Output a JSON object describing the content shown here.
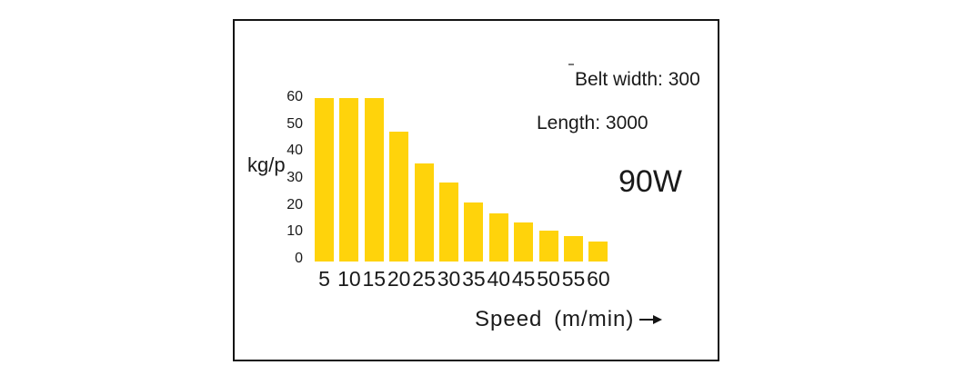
{
  "panel": {
    "background": "#ffffff",
    "border_color": "#141414",
    "text_color": "#1a1a1a"
  },
  "annotations": {
    "belt_width": "Belt width: 300",
    "length": "Length: 3000",
    "power": "90W"
  },
  "icons": {
    "x_axis_arrow": "right-arrow"
  },
  "chart_data": {
    "type": "bar",
    "title": "",
    "categories": [
      "5",
      "10",
      "15",
      "20",
      "25",
      "30",
      "35",
      "40",
      "45",
      "50",
      "55",
      "60"
    ],
    "values": [
      58,
      58,
      58,
      46,
      35,
      28,
      21,
      17,
      14,
      11,
      9,
      7
    ],
    "xlabel": "Speed (m/min)",
    "ylabel": "kg/p",
    "yticks": [
      0,
      10,
      20,
      30,
      40,
      50,
      60
    ],
    "ylim": [
      0,
      60
    ],
    "grid": false,
    "legend": false,
    "bar_color": "#FFD30B"
  }
}
